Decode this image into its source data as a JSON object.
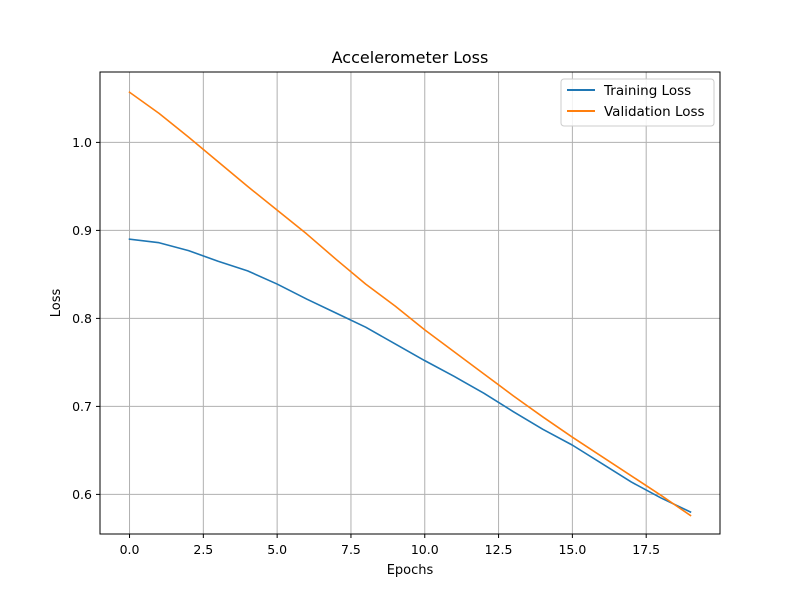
{
  "chart_data": {
    "type": "line",
    "title": "Accelerometer Loss",
    "xlabel": "Epochs",
    "ylabel": "Loss",
    "xlim": [
      -1.0,
      20.0
    ],
    "ylim": [
      0.555,
      1.08
    ],
    "x_ticks": [
      0.0,
      2.5,
      5.0,
      7.5,
      10.0,
      12.5,
      15.0,
      17.5
    ],
    "x_tick_labels": [
      "0.0",
      "2.5",
      "5.0",
      "7.5",
      "10.0",
      "12.5",
      "15.0",
      "17.5"
    ],
    "y_ticks": [
      0.6,
      0.7,
      0.8,
      0.9,
      1.0
    ],
    "y_tick_labels": [
      "0.6",
      "0.7",
      "0.8",
      "0.9",
      "1.0"
    ],
    "grid": true,
    "legend_position": "top-right",
    "x": [
      0,
      1,
      2,
      3,
      4,
      5,
      6,
      7,
      8,
      9,
      10,
      11,
      12,
      13,
      14,
      15,
      16,
      17,
      18,
      19
    ],
    "series": [
      {
        "name": "Training Loss",
        "color": "#1f77b4",
        "values": [
          0.89,
          0.886,
          0.877,
          0.865,
          0.854,
          0.839,
          0.822,
          0.806,
          0.79,
          0.771,
          0.752,
          0.734,
          0.715,
          0.694,
          0.674,
          0.656,
          0.635,
          0.614,
          0.596,
          0.58
        ]
      },
      {
        "name": "Validation Loss",
        "color": "#ff7f0e",
        "values": [
          1.057,
          1.033,
          1.006,
          0.978,
          0.95,
          0.923,
          0.896,
          0.867,
          0.839,
          0.814,
          0.787,
          0.762,
          0.737,
          0.712,
          0.688,
          0.665,
          0.643,
          0.621,
          0.599,
          0.576
        ]
      }
    ]
  }
}
